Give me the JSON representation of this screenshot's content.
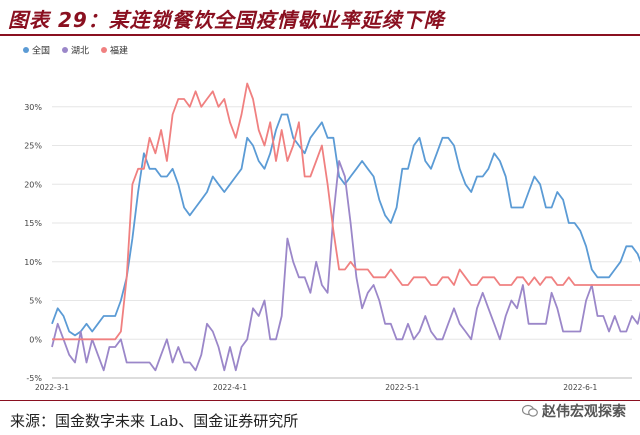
{
  "header": {
    "title": "图表 29：某连锁餐饮全国疫情歇业率延续下降"
  },
  "footer": {
    "source": "来源：国金数字未来 Lab、国金证券研究所",
    "watermark": "赵伟宏观探索"
  },
  "colors": {
    "title": "#8a1020",
    "national": "#5b9bd5",
    "hubei": "#9b87c9",
    "fujian": "#f08080"
  },
  "chart_data": {
    "type": "line",
    "title": "",
    "xlabel": "",
    "ylabel": "",
    "x_ticks": [
      "2022-3-1",
      "2022-4-1",
      "2022-5-1",
      "2022-6-1"
    ],
    "x_tick_days": [
      0,
      31,
      61,
      92
    ],
    "x_range_days": [
      0,
      101
    ],
    "ylim": [
      -5,
      35
    ],
    "y_ticks": [
      "-5%",
      "0%",
      "5%",
      "10%",
      "15%",
      "20%",
      "25%",
      "30%"
    ],
    "y_tick_values": [
      -5,
      0,
      5,
      10,
      15,
      20,
      25,
      30
    ],
    "grid": "horizontal",
    "legend_position": "top-left",
    "series": [
      {
        "name": "全国",
        "color_key": "national",
        "values": [
          2,
          4,
          3,
          1,
          0.5,
          1,
          2,
          1,
          2,
          3,
          3,
          3,
          5,
          8,
          13,
          19,
          24,
          22,
          22,
          21,
          21,
          22,
          20,
          17,
          16,
          17,
          18,
          19,
          21,
          20,
          19,
          20,
          21,
          22,
          26,
          25,
          23,
          22,
          24,
          27,
          29,
          29,
          26,
          25,
          24,
          26,
          27,
          28,
          26,
          26,
          21,
          20,
          21,
          22,
          23,
          22,
          21,
          18,
          16,
          15,
          17,
          22,
          22,
          25,
          26,
          23,
          22,
          24,
          26,
          26,
          25,
          22,
          20,
          19,
          21,
          21,
          22,
          24,
          23,
          21,
          17,
          17,
          17,
          19,
          21,
          20,
          17,
          17,
          19,
          18,
          15,
          15,
          14,
          12,
          9,
          8,
          8,
          8,
          9,
          10,
          12,
          12,
          11,
          9,
          8.5
        ]
      },
      {
        "name": "湖北",
        "color_key": "hubei",
        "values": [
          -1,
          2,
          0,
          -2,
          -3,
          1,
          -3,
          0,
          -2,
          -4,
          -1,
          -1,
          0,
          -3,
          -3,
          -3,
          -3,
          -3,
          -4,
          -2,
          0,
          -3,
          -1,
          -3,
          -3,
          -4,
          -2,
          2,
          1,
          -1,
          -4,
          -1,
          -4,
          -1,
          0,
          4,
          3,
          5,
          0,
          0,
          3,
          13,
          10,
          8,
          8,
          6,
          10,
          7,
          6,
          16,
          23,
          21,
          15,
          8,
          4,
          6,
          7,
          5,
          2,
          2,
          0,
          0,
          2,
          0,
          1,
          3,
          1,
          0,
          0,
          2,
          4,
          2,
          1,
          0,
          4,
          6,
          4,
          2,
          0,
          3,
          5,
          4,
          7,
          2,
          2,
          2,
          2,
          6,
          4,
          1,
          1,
          1,
          1,
          5,
          7,
          3,
          3,
          1,
          3,
          1,
          1,
          3,
          2,
          5,
          2
        ]
      },
      {
        "name": "福建",
        "color_key": "fujian",
        "values": [
          0,
          0,
          0,
          0,
          0,
          0,
          0,
          0,
          0,
          0,
          0,
          0,
          1,
          8,
          20,
          22,
          22,
          26,
          24,
          27,
          23,
          29,
          31,
          31,
          30,
          32,
          30,
          31,
          32,
          30,
          31,
          28,
          26,
          29,
          33,
          31,
          27,
          25,
          28,
          23,
          27,
          23,
          25,
          28,
          21,
          21,
          23,
          25,
          20,
          14,
          9,
          9,
          10,
          9,
          9,
          9,
          8,
          8,
          8,
          9,
          8,
          7,
          7,
          8,
          8,
          8,
          7,
          7,
          8,
          8,
          7,
          9,
          8,
          7,
          7,
          8,
          8,
          8,
          7,
          7,
          7,
          8,
          8,
          7,
          8,
          7,
          8,
          8,
          7,
          7,
          8,
          7,
          7,
          7,
          7,
          7,
          7,
          7,
          7,
          7,
          7,
          7,
          7,
          7,
          7
        ]
      }
    ]
  }
}
